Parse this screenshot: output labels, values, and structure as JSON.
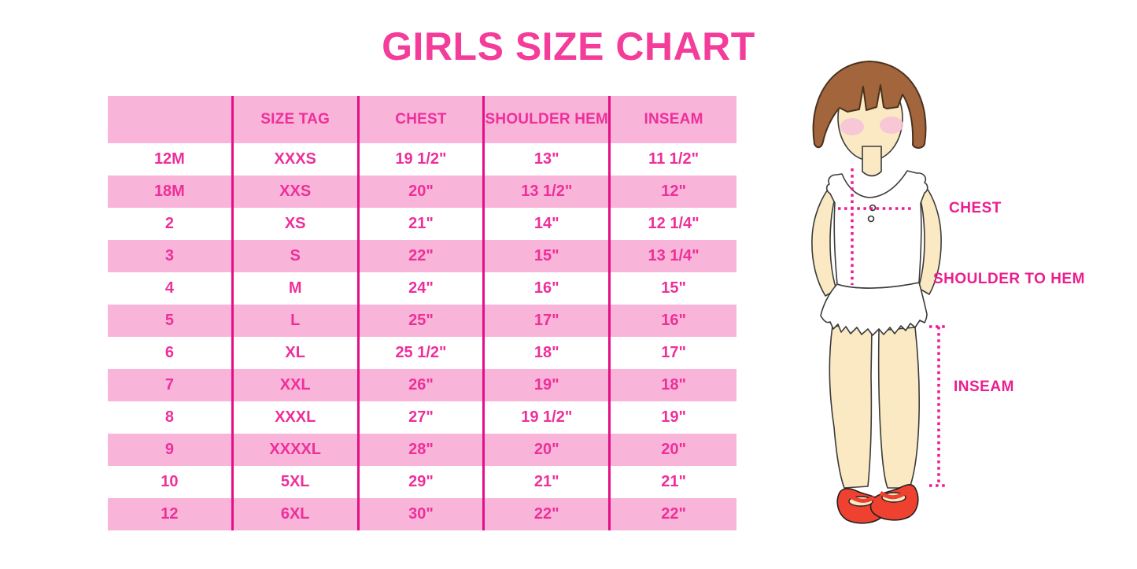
{
  "title": "GIRLS SIZE CHART",
  "colors": {
    "title_pink": "#F43C9B",
    "table_text_magenta": "#EE2F9A",
    "row_pink": "#F9B5D9",
    "divider_magenta": "#E40F87",
    "dotted_line_magenta": "#ED1A90",
    "label_magenta": "#EA1F8F",
    "hair_brown": "#A2653C",
    "skin_cream": "#FBE9C4",
    "shoe_red": "#EF4130"
  },
  "table": {
    "headers": [
      "",
      "SIZE TAG",
      "CHEST",
      "SHOULDER HEM",
      "INSEAM"
    ],
    "rows": [
      [
        "12M",
        "XXXS",
        "19 1/2\"",
        "13\"",
        "11 1/2\""
      ],
      [
        "18M",
        "XXS",
        "20\"",
        "13 1/2\"",
        "12\""
      ],
      [
        "2",
        "XS",
        "21\"",
        "14\"",
        "12 1/4\""
      ],
      [
        "3",
        "S",
        "22\"",
        "15\"",
        "13 1/4\""
      ],
      [
        "4",
        "M",
        "24\"",
        "16\"",
        "15\""
      ],
      [
        "5",
        "L",
        "25\"",
        "17\"",
        "16\""
      ],
      [
        "6",
        "XL",
        "25 1/2\"",
        "18\"",
        "17\""
      ],
      [
        "7",
        "XXL",
        "26\"",
        "19\"",
        "18\""
      ],
      [
        "8",
        "XXXL",
        "27\"",
        "19 1/2\"",
        "19\""
      ],
      [
        "9",
        "XXXXL",
        "28\"",
        "20\"",
        "20\""
      ],
      [
        "10",
        "5XL",
        "29\"",
        "21\"",
        "21\""
      ],
      [
        "12",
        "6XL",
        "30\"",
        "22\"",
        "22\""
      ]
    ]
  },
  "diagram": {
    "labels": {
      "chest": "CHEST",
      "shoulder_to_hem": "SHOULDER TO HEM",
      "inseam": "INSEAM"
    }
  }
}
